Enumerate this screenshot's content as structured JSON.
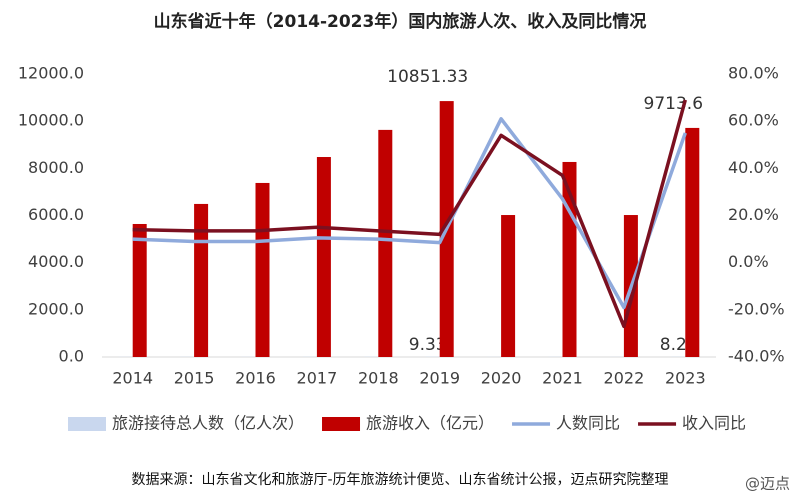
{
  "chart_data": {
    "type": "bar-line",
    "title": "山东省近十年（2014-2023年）国内旅游人次、收入及同比情况",
    "categories": [
      "2014",
      "2015",
      "2016",
      "2017",
      "2018",
      "2019",
      "2020",
      "2021",
      "2022",
      "2023"
    ],
    "series": [
      {
        "name": "旅游接待总人数（亿人次）",
        "type": "bar",
        "color": "#c9d7ee",
        "values": [
          6.62,
          7.06,
          7.7,
          8.5,
          9.36,
          9.33,
          5.85,
          7.4,
          5.9,
          8.2
        ],
        "value_labels": [
          null,
          null,
          null,
          null,
          null,
          "9.33",
          null,
          null,
          null,
          "8.2"
        ]
      },
      {
        "name": "旅游收入（亿元）",
        "type": "bar",
        "color": "#c00000",
        "values": [
          5640,
          6490,
          7380,
          8480,
          9630,
          10851.33,
          6020,
          8270,
          6020,
          9713.6
        ],
        "value_labels": [
          null,
          null,
          null,
          null,
          null,
          "10851.33",
          null,
          null,
          null,
          "9713.6"
        ]
      },
      {
        "name": "人数同比",
        "type": "line",
        "axis": "y2",
        "color": "#8faadc",
        "values": [
          10,
          9,
          9,
          10.5,
          10,
          8.5,
          61,
          27,
          -19,
          55
        ]
      },
      {
        "name": "收入同比",
        "type": "line",
        "axis": "y2",
        "color": "#7b1020",
        "values": [
          14,
          13.5,
          13.5,
          15,
          13.5,
          12,
          54,
          37,
          -27,
          69
        ]
      }
    ],
    "ylim": [
      0,
      12000
    ],
    "yticks": [
      {
        "value": 0,
        "label": "0.0"
      },
      {
        "value": 2000,
        "label": "2000.0"
      },
      {
        "value": 4000,
        "label": "4000.0"
      },
      {
        "value": 6000,
        "label": "6000.0"
      },
      {
        "value": 8000,
        "label": "8000.0"
      },
      {
        "value": 10000,
        "label": "10000.0"
      },
      {
        "value": 12000,
        "label": "12000.0"
      }
    ],
    "y2lim": [
      -40,
      80
    ],
    "y2ticks": [
      {
        "value": -40,
        "label": "-40.0%"
      },
      {
        "value": -20,
        "label": "-20.0%"
      },
      {
        "value": 0,
        "label": "0.0%"
      },
      {
        "value": 20,
        "label": "20.0%"
      },
      {
        "value": 40,
        "label": "40.0%"
      },
      {
        "value": 60,
        "label": "60.0%"
      },
      {
        "value": 80,
        "label": "80.0%"
      }
    ],
    "legend": "bottom",
    "source": "数据来源：山东省文化和旅游厅-历年旅游统计便览、山东省统计公报，迈点研究院整理",
    "watermark": "@迈点"
  }
}
